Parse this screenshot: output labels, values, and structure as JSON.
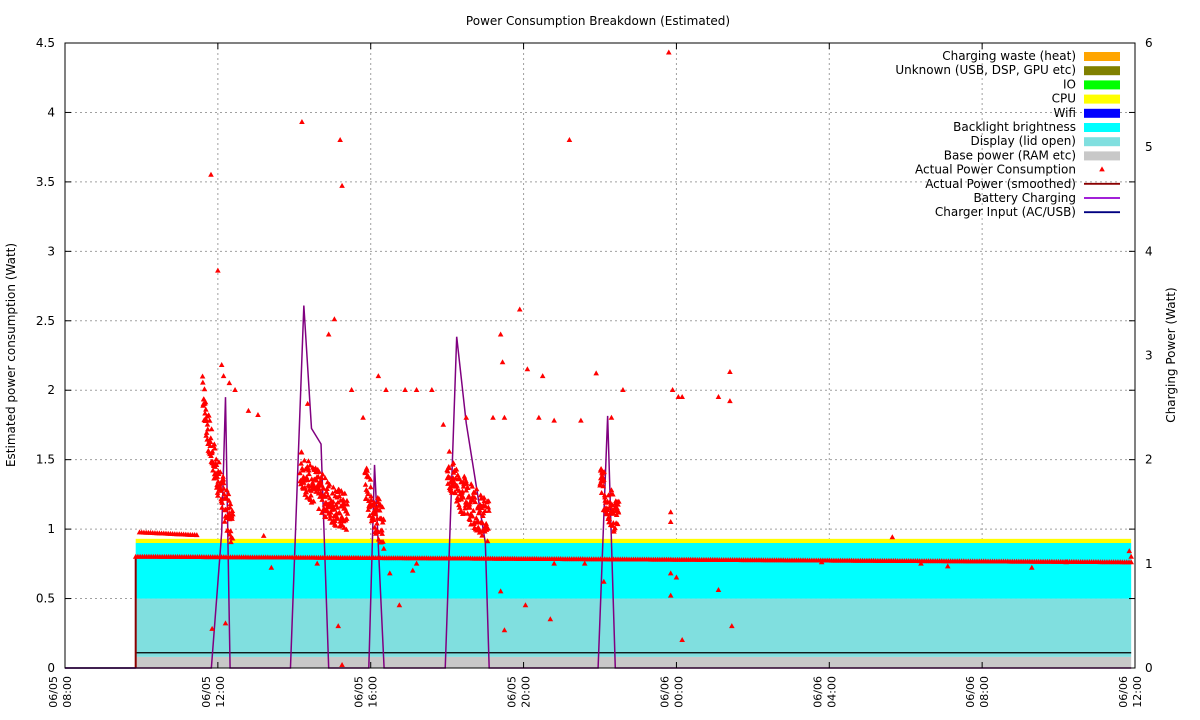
{
  "chart_data": {
    "type": "area",
    "title": "Power Consumption Breakdown (Estimated)",
    "ylabel": "Estimated power consumption (Watt)",
    "y2label": "Charging Power (Watt)",
    "ylim": [
      0,
      4.5
    ],
    "y2lim": [
      0,
      6
    ],
    "yticks": [
      "0",
      "0.5",
      "1",
      "1.5",
      "2",
      "2.5",
      "3",
      "3.5",
      "4",
      "4.5"
    ],
    "y2ticks": [
      "0",
      "1",
      "2",
      "3",
      "4",
      "5",
      "6"
    ],
    "xlim_hours": [
      0,
      28
    ],
    "xticks": [
      {
        "hour": 0,
        "date": "06/05",
        "time": "08:00"
      },
      {
        "hour": 4,
        "date": "06/05",
        "time": "12:00"
      },
      {
        "hour": 8,
        "date": "06/05",
        "time": "16:00"
      },
      {
        "hour": 12,
        "date": "06/05",
        "time": "20:00"
      },
      {
        "hour": 16,
        "date": "06/06",
        "time": "00:00"
      },
      {
        "hour": 20,
        "date": "06/06",
        "time": "04:00"
      },
      {
        "hour": 24,
        "date": "06/06",
        "time": "08:00"
      },
      {
        "hour": 28,
        "date": "06/06",
        "time": "12:00"
      }
    ],
    "grid": true,
    "legend_position": "top-right",
    "stack_start_hour": 1.85,
    "stack_end_hour": 27.9,
    "stacked_layers": [
      {
        "name": "Base power (RAM etc)",
        "color": "#c8c8c8",
        "top": 0.08
      },
      {
        "name": "Display (lid open)",
        "color": "#80dfdf",
        "top": 0.5
      },
      {
        "name": "Backlight brightness",
        "color": "#00ffff",
        "top": 0.9
      },
      {
        "name": "Wifi",
        "color": "#0000ff",
        "top": 0.9
      },
      {
        "name": "CPU",
        "color": "#ffff00",
        "top": 0.93
      },
      {
        "name": "IO",
        "color": "#00ff00",
        "top": 0.93
      },
      {
        "name": "Unknown (USB, DSP, GPU etc)",
        "color": "#808000",
        "top": 0.93
      },
      {
        "name": "Charging waste (heat)",
        "color": "#ffa500",
        "top": 0.93
      }
    ],
    "legend": [
      {
        "label": "Charging waste (heat)",
        "kind": "box",
        "color": "#ffa500"
      },
      {
        "label": "Unknown (USB, DSP, GPU etc)",
        "kind": "box",
        "color": "#808000"
      },
      {
        "label": "IO",
        "kind": "box",
        "color": "#00ff00"
      },
      {
        "label": "CPU",
        "kind": "box",
        "color": "#ffff00"
      },
      {
        "label": "Wifi",
        "kind": "box",
        "color": "#0000ff"
      },
      {
        "label": "Backlight brightness",
        "kind": "box",
        "color": "#00ffff"
      },
      {
        "label": "Display (lid open)",
        "kind": "box",
        "color": "#80dfdf"
      },
      {
        "label": "Base power (RAM etc)",
        "kind": "box",
        "color": "#c8c8c8"
      },
      {
        "label": "Actual Power Consumption",
        "kind": "point",
        "color": "#ff0000"
      },
      {
        "label": "Actual Power (smoothed)",
        "kind": "line",
        "color": "#8b0000"
      },
      {
        "label": "Battery Charging",
        "kind": "line",
        "color": "#9400d3"
      },
      {
        "label": "Charger Input (AC/USB)",
        "kind": "line",
        "color": "#000080"
      }
    ],
    "colors": {
      "actual_points": "#ff0000",
      "actual_smoothed": "#8b0000",
      "battery_charging": "#800080",
      "charger_input": "#000080",
      "baseline_black": "#000000"
    },
    "charger_input_segment": {
      "from_hour": 0,
      "to_hour": 1.85,
      "value": 0
    },
    "baseline_line": {
      "from_hour": 1.85,
      "to_hour": 27.9,
      "value": 0.11
    },
    "smoothed_line": [
      [
        1.85,
        0
      ],
      [
        1.85,
        0.8
      ],
      [
        27.9,
        0.76
      ]
    ],
    "battery_charging": [
      [
        0,
        0
      ],
      [
        3.83,
        0
      ],
      [
        4.1,
        1.3
      ],
      [
        4.2,
        2.6
      ],
      [
        4.32,
        0
      ],
      [
        5.9,
        0
      ],
      [
        6.25,
        3.48
      ],
      [
        6.45,
        2.3
      ],
      [
        6.7,
        2.15
      ],
      [
        6.9,
        0
      ],
      [
        7.95,
        0
      ],
      [
        8.1,
        1.95
      ],
      [
        8.35,
        0
      ],
      [
        9.95,
        0
      ],
      [
        10.25,
        3.18
      ],
      [
        10.5,
        2.35
      ],
      [
        11.0,
        1.2
      ],
      [
        11.1,
        0
      ],
      [
        13.95,
        0
      ],
      [
        14.2,
        2.42
      ],
      [
        14.4,
        0
      ],
      [
        27.9,
        0
      ]
    ],
    "actual_power_flat": [
      {
        "from_hour": 1.95,
        "to_hour": 3.45,
        "value_start": 0.975,
        "value_end": 0.955
      },
      {
        "from_hour": 1.85,
        "to_hour": 27.9,
        "value_start": 0.8,
        "value_end": 0.76
      }
    ],
    "actual_power_clusters": [
      {
        "from_hour": 3.6,
        "to_hour": 4.4,
        "high": 2.1,
        "low": 1.0
      },
      {
        "from_hour": 6.15,
        "to_hour": 7.4,
        "high": 1.5,
        "low": 1.1
      },
      {
        "from_hour": 7.85,
        "to_hour": 8.35,
        "high": 1.4,
        "low": 1.0
      },
      {
        "from_hour": 10.0,
        "to_hour": 11.1,
        "high": 1.5,
        "low": 1.05
      },
      {
        "from_hour": 14.0,
        "to_hour": 14.5,
        "high": 1.4,
        "low": 1.05
      }
    ],
    "actual_power_points": [
      [
        3.82,
        3.55
      ],
      [
        4.0,
        2.86
      ],
      [
        4.1,
        2.18
      ],
      [
        4.15,
        2.1
      ],
      [
        4.3,
        2.05
      ],
      [
        4.45,
        2.0
      ],
      [
        4.8,
        1.85
      ],
      [
        5.05,
        1.82
      ],
      [
        6.2,
        3.93
      ],
      [
        6.35,
        1.9
      ],
      [
        6.9,
        2.4
      ],
      [
        7.2,
        3.8
      ],
      [
        7.25,
        3.47
      ],
      [
        7.05,
        2.51
      ],
      [
        7.5,
        2.0
      ],
      [
        7.8,
        1.8
      ],
      [
        8.2,
        2.1
      ],
      [
        8.4,
        2.0
      ],
      [
        8.9,
        2.0
      ],
      [
        9.2,
        2.0
      ],
      [
        9.6,
        2.0
      ],
      [
        9.9,
        1.75
      ],
      [
        10.5,
        1.8
      ],
      [
        11.2,
        1.8
      ],
      [
        11.4,
        2.4
      ],
      [
        11.45,
        2.2
      ],
      [
        11.5,
        1.8
      ],
      [
        11.9,
        2.58
      ],
      [
        12.1,
        2.15
      ],
      [
        12.4,
        1.8
      ],
      [
        12.5,
        2.1
      ],
      [
        12.8,
        1.78
      ],
      [
        13.2,
        3.8
      ],
      [
        13.5,
        1.78
      ],
      [
        13.9,
        2.12
      ],
      [
        14.3,
        1.8
      ],
      [
        14.6,
        2.0
      ],
      [
        15.8,
        4.43
      ],
      [
        15.9,
        2.0
      ],
      [
        16.05,
        1.95
      ],
      [
        16.15,
        1.95
      ],
      [
        17.1,
        1.95
      ],
      [
        17.4,
        2.13
      ],
      [
        17.4,
        1.92
      ],
      [
        15.85,
        1.12
      ],
      [
        15.85,
        1.05
      ],
      [
        3.85,
        0.28
      ],
      [
        4.2,
        0.32
      ],
      [
        5.2,
        0.95
      ],
      [
        6.6,
        0.75
      ],
      [
        7.15,
        0.3
      ],
      [
        7.25,
        0.02
      ],
      [
        8.5,
        0.68
      ],
      [
        8.75,
        0.45
      ],
      [
        9.1,
        0.7
      ],
      [
        11.4,
        0.55
      ],
      [
        11.5,
        0.27
      ],
      [
        12.05,
        0.45
      ],
      [
        12.7,
        0.35
      ],
      [
        13.6,
        0.75
      ],
      [
        14.1,
        0.62
      ],
      [
        15.85,
        0.68
      ],
      [
        15.85,
        0.52
      ],
      [
        16.0,
        0.65
      ],
      [
        16.15,
        0.2
      ],
      [
        17.1,
        0.56
      ],
      [
        17.45,
        0.3
      ],
      [
        19.8,
        0.76
      ],
      [
        22.4,
        0.75
      ],
      [
        23.1,
        0.73
      ],
      [
        25.3,
        0.72
      ],
      [
        26.2,
        0.76
      ],
      [
        27.85,
        0.84
      ],
      [
        27.9,
        0.8
      ],
      [
        21.65,
        0.94
      ],
      [
        12.8,
        0.75
      ],
      [
        9.2,
        0.75
      ],
      [
        5.4,
        0.72
      ]
    ]
  }
}
